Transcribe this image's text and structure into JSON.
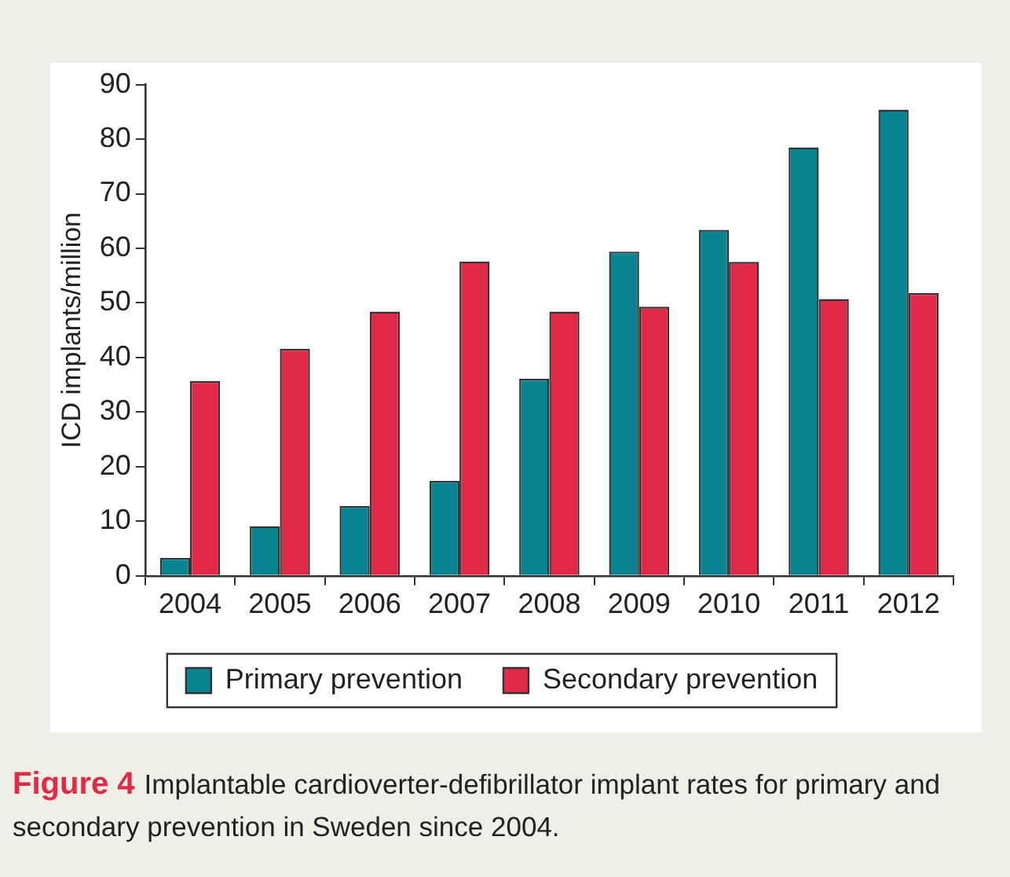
{
  "chart_data": {
    "type": "bar",
    "title": "Figure 4",
    "annotations": [
      "Implantable cardioverter-defibrillator implant rates for primary and secondary prevention in Sweden since 2004."
    ],
    "ylabel": "ICD implants/million",
    "categories": [
      "2004",
      "2005",
      "2006",
      "2007",
      "2008",
      "2009",
      "2010",
      "2011",
      "2012"
    ],
    "series": [
      {
        "name": "Primary prevention",
        "color": "#0b8492",
        "values": [
          3.3,
          9.1,
          12.8,
          17.4,
          36.1,
          59.4,
          63.4,
          78.5,
          85.4
        ]
      },
      {
        "name": "Secondary prevention",
        "color": "#e02a47",
        "values": [
          35.7,
          41.6,
          48.4,
          57.6,
          48.4,
          49.3,
          57.5,
          50.7,
          51.8
        ]
      }
    ],
    "ylim": [
      0,
      90
    ],
    "yticks": [
      0,
      10,
      20,
      30,
      40,
      50,
      60,
      70,
      80,
      90
    ],
    "grid": false,
    "legend": "bottom"
  }
}
